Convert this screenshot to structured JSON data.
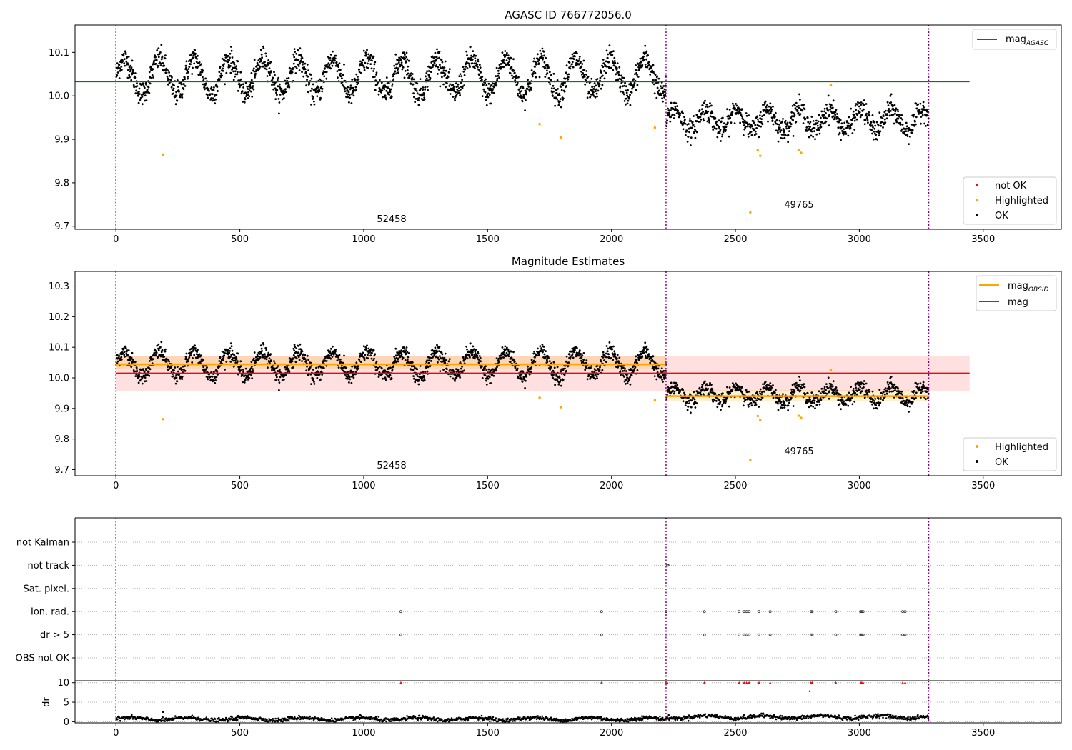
{
  "chart_data": [
    {
      "type": "scatter",
      "title": "AGASC ID 766772056.0",
      "xlabel": "",
      "ylabel": "",
      "xlim": [
        -165,
        3815
      ],
      "ylim": [
        9.693,
        10.163
      ],
      "xticks": [
        0,
        500,
        1000,
        1500,
        2000,
        2500,
        3000,
        3500
      ],
      "yticks": [
        9.7,
        9.8,
        9.9,
        10.0,
        10.1
      ],
      "vlines": [
        0,
        2220,
        3280
      ],
      "segments": [
        {
          "x_start": 0,
          "x_end": 2220,
          "base": 10.045,
          "amplitude": 0.04,
          "period": 140,
          "scatter": 0.014
        },
        {
          "x_start": 2220,
          "x_end": 3280,
          "base": 9.945,
          "amplitude": 0.025,
          "period": 125,
          "scatter": 0.013
        }
      ],
      "highlighted": [
        {
          "x": 190,
          "y": 9.865
        },
        {
          "x": 1710,
          "y": 9.935
        },
        {
          "x": 1795,
          "y": 9.904
        },
        {
          "x": 2175,
          "y": 9.927
        },
        {
          "x": 2560,
          "y": 9.732
        },
        {
          "x": 2590,
          "y": 9.875
        },
        {
          "x": 2600,
          "y": 9.862
        },
        {
          "x": 2755,
          "y": 9.876
        },
        {
          "x": 2765,
          "y": 9.869
        },
        {
          "x": 2885,
          "y": 10.025
        }
      ],
      "reference_line": {
        "name": "mag_AGASC",
        "value": 10.033,
        "x_start": -165,
        "x_end": 3445,
        "color": "#008000"
      },
      "annotations": [
        {
          "text": "52458",
          "x": 1110,
          "y": 9.71
        },
        {
          "text": "49765",
          "x": 2765,
          "y": 9.743
        }
      ],
      "legend_upper": {
        "position": "upper-right",
        "entries": [
          {
            "label": "mag",
            "sub": "AGASC",
            "color": "#008000"
          }
        ]
      },
      "legend_lower": {
        "position": "lower-right",
        "entries": [
          {
            "label": "not OK",
            "color": "#ff0000"
          },
          {
            "label": "Highlighted",
            "color": "#ffa500"
          },
          {
            "label": "OK",
            "color": "#000000"
          }
        ]
      },
      "grid": false
    },
    {
      "type": "scatter",
      "title": "Magnitude Estimates",
      "xlabel": "",
      "ylabel": "",
      "xlim": [
        -165,
        3815
      ],
      "ylim": [
        9.68,
        10.348
      ],
      "xticks": [
        0,
        500,
        1000,
        1500,
        2000,
        2500,
        3000,
        3500
      ],
      "yticks": [
        9.7,
        9.8,
        9.9,
        10.0,
        10.1,
        10.2,
        10.3
      ],
      "vlines": [
        0,
        2220,
        3280
      ],
      "mag_line": {
        "value": 10.015,
        "band": [
          9.958,
          10.072
        ],
        "x_start": 0,
        "x_end": 3445,
        "color": "#ff0000"
      },
      "obsid_lines": [
        {
          "x_start": 0,
          "x_end": 2220,
          "value": 10.044,
          "band": [
            10.03,
            10.07
          ]
        },
        {
          "x_start": 2220,
          "x_end": 3280,
          "value": 9.94,
          "band": [
            9.925,
            9.96
          ]
        }
      ],
      "annotations": [
        {
          "text": "52458",
          "x": 1110,
          "y": 9.71
        },
        {
          "text": "49765",
          "x": 2765,
          "y": 9.753
        }
      ],
      "legend_upper": {
        "position": "upper-right",
        "entries": [
          {
            "label": "mag",
            "sub": "OBSID",
            "color": "#ffa500"
          },
          {
            "label": "mag",
            "sub": "",
            "color": "#ff0000"
          }
        ]
      },
      "legend_lower": {
        "position": "lower-right",
        "entries": [
          {
            "label": "Highlighted",
            "color": "#ffa500"
          },
          {
            "label": "OK",
            "color": "#000000"
          }
        ]
      },
      "grid": false
    },
    {
      "type": "scatter",
      "title": "",
      "xlabel": "",
      "ylabel": "",
      "xlim": [
        -165,
        3815
      ],
      "categories": [
        "not Kalman",
        "not track",
        "Sat. pixel.",
        "Ion. rad.",
        "dr > 5",
        "OBS not OK"
      ],
      "vlines": [
        0,
        2220,
        3280
      ],
      "flags": [
        {
          "category": "not track",
          "x": [
            2220,
            2225,
            2228
          ]
        },
        {
          "category": "Ion. rad.",
          "x": [
            1150,
            1960,
            2220,
            2375,
            2515,
            2535,
            2545,
            2555,
            2595,
            2640,
            2805,
            2810,
            2905,
            3005,
            3010,
            3015,
            3175,
            3185
          ]
        },
        {
          "category": "dr > 5",
          "x": [
            1150,
            1960,
            2220,
            2375,
            2515,
            2535,
            2545,
            2555,
            2595,
            2640,
            2805,
            2810,
            2905,
            3005,
            3010,
            3015,
            3175,
            3185
          ]
        }
      ],
      "grid": true
    },
    {
      "type": "scatter",
      "title": "",
      "xlabel": "",
      "ylabel": "dr",
      "xlim": [
        -165,
        3815
      ],
      "ylim": [
        -0.3,
        10.5
      ],
      "xticks": [
        0,
        500,
        1000,
        1500,
        2000,
        2500,
        3000,
        3500
      ],
      "yticks": [
        0,
        5,
        10
      ],
      "vlines": [
        0,
        2220,
        3280
      ],
      "clipped_points_at_10": [
        1150,
        1960,
        2220,
        2225,
        2375,
        2515,
        2535,
        2545,
        2555,
        2595,
        2640,
        2805,
        2810,
        2905,
        3005,
        3010,
        3015,
        3175,
        3185
      ],
      "outliers": [
        {
          "x": 2800,
          "y": 7.8
        },
        {
          "x": 190,
          "y": 2.5
        }
      ],
      "typical_dr": {
        "segment1": 0.7,
        "segment2": 1.2
      },
      "grid": true
    }
  ]
}
